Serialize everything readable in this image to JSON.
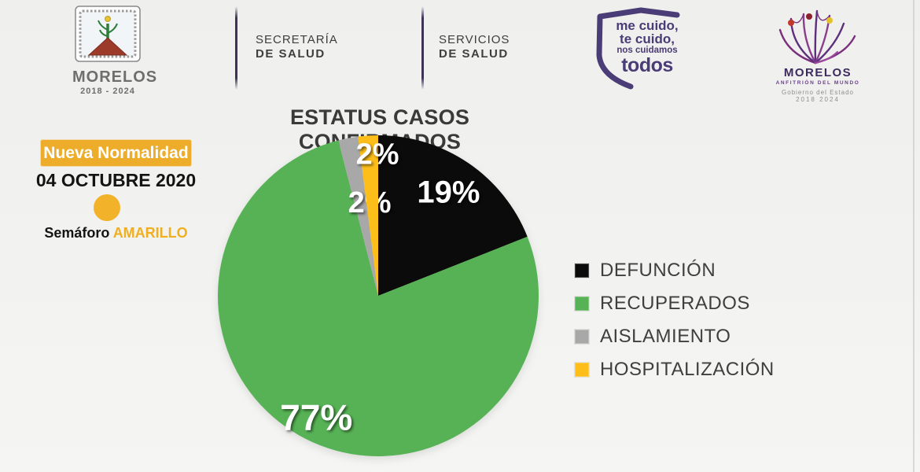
{
  "page": {
    "background": "#f1f1ef"
  },
  "header": {
    "seal": {
      "name": "MORELOS",
      "years": "2018 - 2024"
    },
    "secretaria": {
      "line1": "SECRETARÍA",
      "line2": "DE SALUD"
    },
    "servicios": {
      "line1": "SERVICIOS",
      "line2": "DE SALUD"
    },
    "cuido_shield": {
      "line1": "me cuido,",
      "line2": "te cuido,",
      "line3": "nos cuidamos",
      "line4": "todos",
      "color": "#4a3c76"
    },
    "anfitrion": {
      "name": "MORELOS",
      "tagline": "ANFITRIÓN DEL MUNDO",
      "gov": "Gobierno del Estado",
      "years": "2018 2024"
    }
  },
  "status_panel": {
    "banner": "Nueva Normalidad",
    "banner_color": "#edad2b",
    "date": "04 OCTUBRE 2020",
    "semaforo_label": "Semáforo",
    "semaforo_value": "AMARILLO",
    "semaforo_color": "#f2b32a"
  },
  "chart_data": {
    "type": "pie",
    "title": "ESTATUS CASOS CONFIRMADOS",
    "categories": [
      "DEFUNCIÓN",
      "RECUPERADOS",
      "AISLAMIENTO",
      "HOSPITALIZACIÓN"
    ],
    "values": [
      19,
      77,
      2,
      2
    ],
    "unit": "%",
    "slice_labels": [
      "19%",
      "77%",
      "2%",
      "2%"
    ],
    "colors": [
      "#0b0b0b",
      "#57b256",
      "#a8a8a8",
      "#fdbe1a"
    ],
    "start_angle": 0,
    "direction": "clockwise",
    "legend_position": "right",
    "label_color": "#ffffff"
  }
}
